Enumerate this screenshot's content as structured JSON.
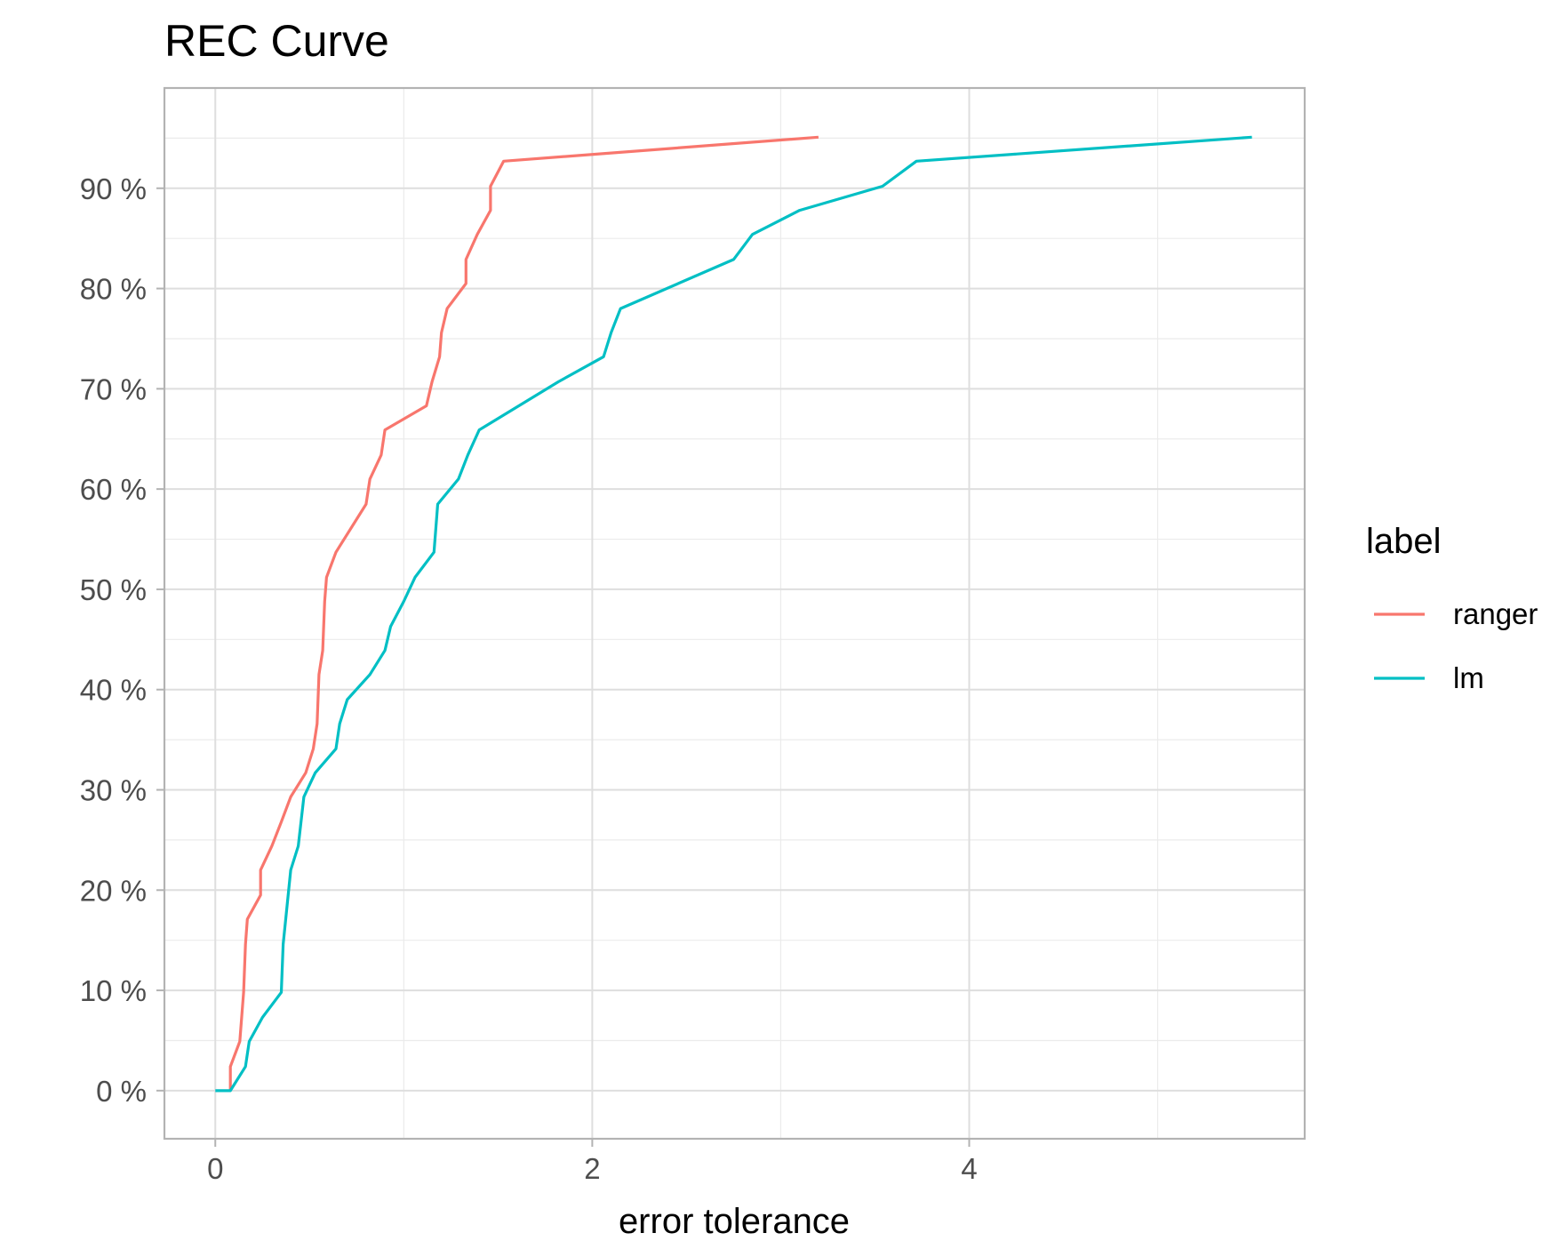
{
  "chart_data": {
    "type": "line",
    "title": "REC Curve",
    "xlabel": "error tolerance",
    "ylabel": "",
    "xlim": [
      -0.27,
      5.78
    ],
    "ylim": [
      -0.048,
      1.0
    ],
    "x_ticks": [
      0,
      2,
      4
    ],
    "x_tick_labels": [
      "0",
      "2",
      "4"
    ],
    "x_minor_ticks": [
      1,
      3,
      5
    ],
    "y_ticks": [
      0,
      0.1,
      0.2,
      0.3,
      0.4,
      0.5,
      0.6,
      0.7,
      0.8,
      0.9
    ],
    "y_tick_labels": [
      "0 %",
      "10 %",
      "20 %",
      "30 %",
      "40 %",
      "50 %",
      "60 %",
      "70 %",
      "80 %",
      "90 %"
    ],
    "y_minor_ticks": [
      0.05,
      0.15,
      0.25,
      0.35,
      0.45,
      0.55,
      0.65,
      0.75,
      0.85,
      0.95
    ],
    "grid": true,
    "legend": {
      "title": "label",
      "position": "right"
    },
    "series": [
      {
        "name": "ranger",
        "color": "#f8766d",
        "points": [
          [
            0.08,
            0.0
          ],
          [
            0.08,
            0.024
          ],
          [
            0.13,
            0.049
          ],
          [
            0.15,
            0.098
          ],
          [
            0.16,
            0.146
          ],
          [
            0.17,
            0.171
          ],
          [
            0.24,
            0.195
          ],
          [
            0.24,
            0.22
          ],
          [
            0.3,
            0.244
          ],
          [
            0.35,
            0.268
          ],
          [
            0.4,
            0.293
          ],
          [
            0.48,
            0.317
          ],
          [
            0.52,
            0.341
          ],
          [
            0.54,
            0.366
          ],
          [
            0.55,
            0.415
          ],
          [
            0.57,
            0.439
          ],
          [
            0.58,
            0.488
          ],
          [
            0.59,
            0.512
          ],
          [
            0.64,
            0.537
          ],
          [
            0.8,
            0.585
          ],
          [
            0.82,
            0.61
          ],
          [
            0.88,
            0.634
          ],
          [
            0.9,
            0.659
          ],
          [
            1.12,
            0.683
          ],
          [
            1.15,
            0.707
          ],
          [
            1.19,
            0.732
          ],
          [
            1.2,
            0.756
          ],
          [
            1.23,
            0.78
          ],
          [
            1.33,
            0.805
          ],
          [
            1.33,
            0.829
          ],
          [
            1.39,
            0.854
          ],
          [
            1.46,
            0.878
          ],
          [
            1.46,
            0.902
          ],
          [
            1.53,
            0.927
          ],
          [
            3.2,
            0.951
          ]
        ]
      },
      {
        "name": "lm",
        "color": "#00bfc4",
        "points": [
          [
            0.0,
            0.0
          ],
          [
            0.08,
            0.0
          ],
          [
            0.16,
            0.024
          ],
          [
            0.18,
            0.049
          ],
          [
            0.25,
            0.073
          ],
          [
            0.35,
            0.098
          ],
          [
            0.36,
            0.146
          ],
          [
            0.4,
            0.22
          ],
          [
            0.44,
            0.244
          ],
          [
            0.47,
            0.293
          ],
          [
            0.53,
            0.317
          ],
          [
            0.64,
            0.341
          ],
          [
            0.66,
            0.366
          ],
          [
            0.7,
            0.39
          ],
          [
            0.82,
            0.415
          ],
          [
            0.9,
            0.439
          ],
          [
            0.93,
            0.463
          ],
          [
            1.0,
            0.488
          ],
          [
            1.06,
            0.512
          ],
          [
            1.16,
            0.537
          ],
          [
            1.18,
            0.585
          ],
          [
            1.29,
            0.61
          ],
          [
            1.34,
            0.634
          ],
          [
            1.4,
            0.659
          ],
          [
            1.82,
            0.707
          ],
          [
            2.06,
            0.732
          ],
          [
            2.1,
            0.756
          ],
          [
            2.15,
            0.78
          ],
          [
            2.75,
            0.829
          ],
          [
            2.85,
            0.854
          ],
          [
            3.1,
            0.878
          ],
          [
            3.54,
            0.902
          ],
          [
            3.72,
            0.927
          ],
          [
            5.5,
            0.951
          ]
        ]
      }
    ]
  }
}
